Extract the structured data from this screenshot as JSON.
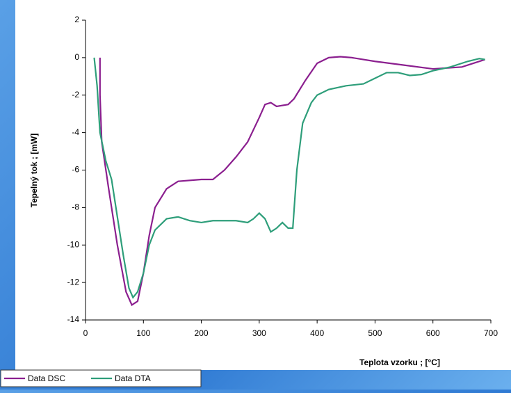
{
  "chart_data": {
    "type": "line",
    "xlabel": "Teplota vzorku ; [°C]",
    "ylabel": "Tepelný tok ; [mW]",
    "xlim": [
      0,
      700
    ],
    "xticks": [
      0,
      100,
      200,
      300,
      400,
      500,
      600,
      700
    ],
    "ylim": [
      -14,
      2
    ],
    "yticks": [
      -14,
      -12,
      -10,
      -8,
      -6,
      -4,
      -2,
      0,
      2
    ],
    "legend": "bottom-left",
    "series": [
      {
        "name": "Data DSC",
        "color": "#8b1f8f",
        "x": [
          25,
          25,
          28,
          40,
          55,
          70,
          80,
          90,
          100,
          110,
          120,
          140,
          160,
          200,
          220,
          240,
          260,
          280,
          300,
          310,
          320,
          330,
          350,
          360,
          380,
          400,
          420,
          440,
          460,
          500,
          550,
          600,
          650,
          670,
          690
        ],
        "values": [
          0,
          -2,
          -4.5,
          -7,
          -10,
          -12.5,
          -13.2,
          -13,
          -11.5,
          -9.5,
          -8,
          -7,
          -6.6,
          -6.5,
          -6.5,
          -6,
          -5.3,
          -4.5,
          -3.2,
          -2.5,
          -2.4,
          -2.6,
          -2.5,
          -2.2,
          -1.2,
          -0.3,
          0,
          0.05,
          0,
          -0.2,
          -0.4,
          -0.6,
          -0.5,
          -0.3,
          -0.1
        ]
      },
      {
        "name": "Data DTA",
        "color": "#2e9e7a",
        "x": [
          15,
          20,
          25,
          35,
          45,
          55,
          65,
          75,
          82,
          90,
          100,
          110,
          120,
          140,
          160,
          180,
          200,
          220,
          260,
          280,
          290,
          300,
          310,
          320,
          330,
          340,
          350,
          358,
          365,
          375,
          390,
          400,
          420,
          450,
          480,
          500,
          520,
          540,
          560,
          580,
          600,
          630,
          660,
          680,
          690
        ],
        "values": [
          0,
          -1.5,
          -4,
          -5.5,
          -6.5,
          -8.5,
          -10.5,
          -12.3,
          -12.8,
          -12.5,
          -11.5,
          -10,
          -9.2,
          -8.6,
          -8.5,
          -8.7,
          -8.8,
          -8.7,
          -8.7,
          -8.8,
          -8.6,
          -8.3,
          -8.6,
          -9.3,
          -9.1,
          -8.8,
          -9.1,
          -9.1,
          -6,
          -3.5,
          -2.4,
          -2,
          -1.7,
          -1.5,
          -1.4,
          -1.1,
          -0.8,
          -0.8,
          -0.95,
          -0.9,
          -0.7,
          -0.5,
          -0.2,
          -0.05,
          -0.1
        ]
      }
    ]
  }
}
